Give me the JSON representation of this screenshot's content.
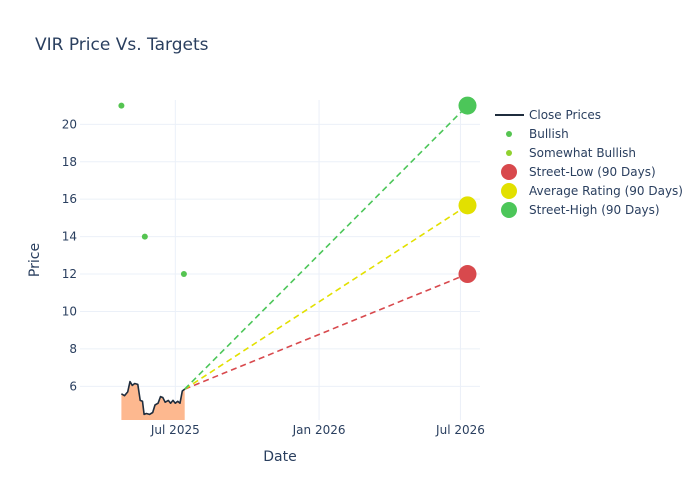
{
  "chart_data": {
    "type": "line",
    "title": "VIR Price Vs. Targets",
    "xlabel": "Date",
    "ylabel": "Price",
    "xlim": [
      "2025-03-01",
      "2026-07-26"
    ],
    "ylim": [
      4.2,
      21.3
    ],
    "x_ticks": [
      {
        "date": "2025-07-01",
        "label": "Jul 2025"
      },
      {
        "date": "2026-01-01",
        "label": "Jan 2026"
      },
      {
        "date": "2026-07-01",
        "label": "Jul 2026"
      }
    ],
    "y_ticks": [
      6,
      8,
      10,
      12,
      14,
      16,
      18,
      20
    ],
    "grid": true,
    "legend_position": "right",
    "series": [
      {
        "name": "Close Prices",
        "kind": "line",
        "color": "#1f2d3d",
        "fill_color": "#fdb88f",
        "points": [
          [
            "2025-04-23",
            5.6
          ],
          [
            "2025-04-27",
            5.5
          ],
          [
            "2025-05-01",
            5.7
          ],
          [
            "2025-05-04",
            6.25
          ],
          [
            "2025-05-07",
            6.05
          ],
          [
            "2025-05-10",
            6.15
          ],
          [
            "2025-05-14",
            6.1
          ],
          [
            "2025-05-17",
            5.25
          ],
          [
            "2025-05-20",
            5.2
          ],
          [
            "2025-05-22",
            4.5
          ],
          [
            "2025-05-25",
            4.55
          ],
          [
            "2025-05-29",
            4.5
          ],
          [
            "2025-06-02",
            4.6
          ],
          [
            "2025-06-05",
            5.0
          ],
          [
            "2025-06-09",
            5.1
          ],
          [
            "2025-06-12",
            5.45
          ],
          [
            "2025-06-15",
            5.4
          ],
          [
            "2025-06-18",
            5.15
          ],
          [
            "2025-06-22",
            5.25
          ],
          [
            "2025-06-25",
            5.1
          ],
          [
            "2025-06-28",
            5.25
          ],
          [
            "2025-07-01",
            5.1
          ],
          [
            "2025-07-04",
            5.2
          ],
          [
            "2025-07-07",
            5.1
          ],
          [
            "2025-07-10",
            5.75
          ],
          [
            "2025-07-13",
            5.85
          ]
        ]
      },
      {
        "name": "Bullish",
        "kind": "scatter",
        "color": "#55c451",
        "points": [
          [
            "2025-04-23",
            21
          ],
          [
            "2025-05-23",
            14
          ],
          [
            "2025-07-12",
            12
          ]
        ]
      },
      {
        "name": "Somewhat Bullish",
        "kind": "scatter",
        "color": "#90d12f",
        "points": []
      },
      {
        "name": "Street-Low (90 Days)",
        "kind": "target",
        "color": "#d8494d",
        "value": 12,
        "from": [
          "2025-07-13",
          5.85
        ],
        "to": [
          "2026-07-10",
          12
        ]
      },
      {
        "name": "Average Rating (90 Days)",
        "kind": "target",
        "color": "#e2e000",
        "value": 15.67,
        "from": [
          "2025-07-13",
          5.85
        ],
        "to": [
          "2026-07-10",
          15.67
        ]
      },
      {
        "name": "Street-High (90 Days)",
        "kind": "target",
        "color": "#4cc659",
        "value": 21,
        "from": [
          "2025-07-13",
          5.85
        ],
        "to": [
          "2026-07-10",
          21
        ]
      }
    ]
  }
}
